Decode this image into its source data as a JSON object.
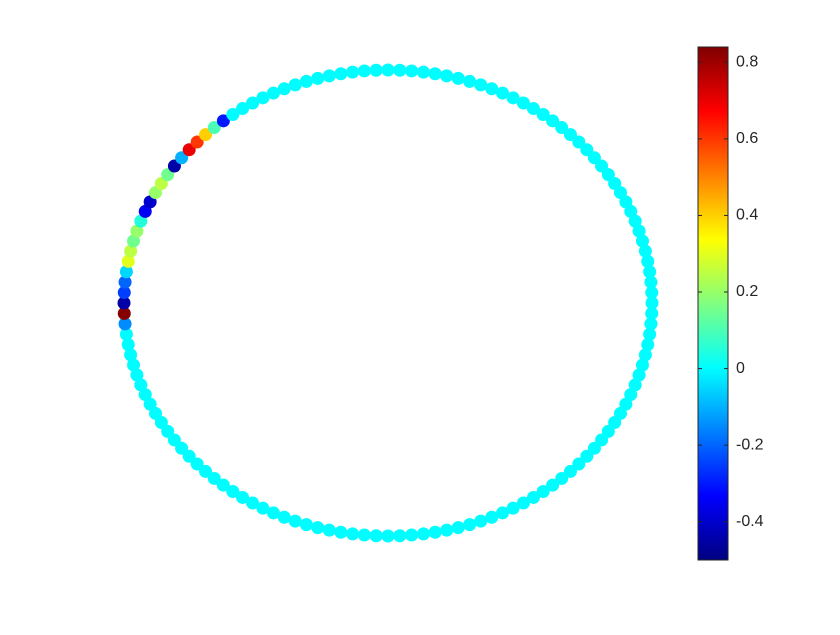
{
  "chart_data": {
    "type": "graph",
    "layout": "circle",
    "colormap": "jet",
    "values": [
      0,
      0,
      0,
      0,
      0,
      0,
      0,
      0,
      0,
      0,
      0,
      0,
      0,
      0,
      0,
      0,
      0,
      0,
      0,
      0,
      0,
      0,
      0,
      0,
      0,
      0,
      0,
      0,
      0,
      0,
      0,
      0,
      0,
      0,
      0,
      0,
      0,
      0,
      0,
      0,
      0,
      0,
      0,
      0,
      0,
      0,
      0,
      0,
      0,
      0,
      0,
      0,
      0,
      0,
      0,
      0,
      0,
      0,
      0,
      0,
      0,
      0,
      0,
      0,
      0,
      0,
      0,
      0,
      0,
      0,
      0,
      0,
      0,
      0,
      0,
      0,
      0,
      0,
      0,
      0,
      0,
      0,
      0,
      0,
      0,
      0,
      0,
      0,
      0,
      0,
      0,
      0,
      0,
      0,
      0,
      0,
      0,
      0,
      0,
      0,
      0,
      0,
      0,
      -0.15,
      0.83,
      -0.45,
      -0.25,
      -0.2,
      -0.05,
      0.3,
      0.25,
      0.15,
      0.2,
      0.05,
      -0.35,
      -0.4,
      0.2,
      0.25,
      0.15,
      -0.45,
      -0.1,
      0.7,
      0.6,
      0.4,
      0.1,
      -0.3,
      0,
      0,
      0,
      0,
      0,
      0,
      0,
      0,
      0,
      0,
      0,
      0,
      0,
      0
    ],
    "clim": [
      -0.5,
      0.84
    ],
    "cticks": [
      -0.4,
      -0.2,
      0,
      0.2,
      0.4,
      0.6,
      0.8
    ]
  }
}
